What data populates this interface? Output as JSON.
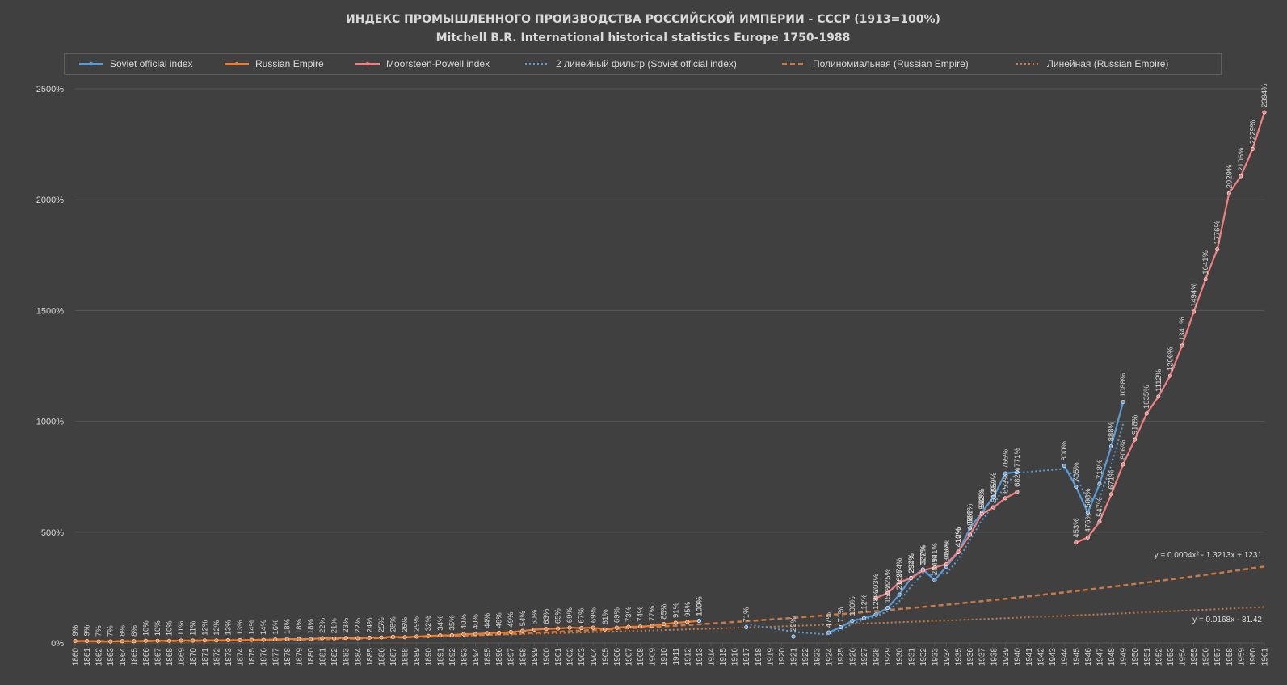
{
  "title_line1": "ИНДЕКС ПРОМЫШЛЕННОГО ПРОИЗВОДСТВА  РОССИЙСКОЙ ИМПЕРИИ  - СССР (1913=100%)",
  "title_line2": "Mitchell B.R. International historical statistics Europe 1750-1988",
  "colors": {
    "background": "#404040",
    "grid": "#595959",
    "text": "#d9d9d9",
    "soviet": "#5b9bd5",
    "russian": "#ed7d31",
    "mp": "#f08080",
    "trend": "#c97a45"
  },
  "chart_data": {
    "type": "line",
    "ylim": [
      0,
      2500
    ],
    "yticks": [
      0,
      500,
      1000,
      1500,
      2000,
      2500
    ],
    "ytick_labels": [
      "0%",
      "500%",
      "1000%",
      "1500%",
      "2000%",
      "2500%"
    ],
    "categories": [
      "1860",
      "1861",
      "1862",
      "1863",
      "1864",
      "1865",
      "1866",
      "1867",
      "1868",
      "1869",
      "1870",
      "1871",
      "1872",
      "1873",
      "1874",
      "1875",
      "1876",
      "1877",
      "1878",
      "1879",
      "1880",
      "1881",
      "1882",
      "1883",
      "1884",
      "1885",
      "1886",
      "1887",
      "1888",
      "1889",
      "1890",
      "1891",
      "1892",
      "1893",
      "1894",
      "1895",
      "1896",
      "1897",
      "1898",
      "1899",
      "1900",
      "1901",
      "1902",
      "1903",
      "1904",
      "1905",
      "1906",
      "1907",
      "1908",
      "1909",
      "1910",
      "1911",
      "1912",
      "1913",
      "1914",
      "1915",
      "1916",
      "1917",
      "1918",
      "1919",
      "1920",
      "1921",
      "1922",
      "1923",
      "1924",
      "1925",
      "1926",
      "1927",
      "1928",
      "1929",
      "1930",
      "1931",
      "1932",
      "1933",
      "1934",
      "1935",
      "1936",
      "1937",
      "1938",
      "1939",
      "1940",
      "1941",
      "1942",
      "1943",
      "1944",
      "1945",
      "1946",
      "1947",
      "1948",
      "1949",
      "1950",
      "1951",
      "1952",
      "1953",
      "1954",
      "1955",
      "1956",
      "1957",
      "1958",
      "1959",
      "1960",
      "1961"
    ],
    "legend": [
      "Soviet official index",
      "Russian Empire",
      "Moorsteen-Powell index",
      "2 линейный фильтр (Soviet official index)",
      "Полиномиальная (Russian Empire)",
      "Линейная (Russian Empire)"
    ],
    "legend_position": "top",
    "series": [
      {
        "name": "Russian Empire",
        "points": [
          [
            1860,
            9
          ],
          [
            1861,
            9
          ],
          [
            1862,
            7
          ],
          [
            1863,
            7
          ],
          [
            1864,
            8
          ],
          [
            1865,
            8
          ],
          [
            1866,
            10
          ],
          [
            1867,
            10
          ],
          [
            1868,
            10
          ],
          [
            1869,
            11
          ],
          [
            1870,
            11
          ],
          [
            1871,
            12
          ],
          [
            1872,
            12
          ],
          [
            1873,
            13
          ],
          [
            1874,
            13
          ],
          [
            1875,
            14
          ],
          [
            1876,
            14
          ],
          [
            1877,
            16
          ],
          [
            1878,
            18
          ],
          [
            1879,
            18
          ],
          [
            1880,
            18
          ],
          [
            1881,
            22
          ],
          [
            1882,
            21
          ],
          [
            1883,
            23
          ],
          [
            1884,
            22
          ],
          [
            1885,
            24
          ],
          [
            1886,
            25
          ],
          [
            1887,
            28
          ],
          [
            1888,
            26
          ],
          [
            1889,
            29
          ],
          [
            1890,
            32
          ],
          [
            1891,
            34
          ],
          [
            1892,
            35
          ],
          [
            1893,
            40
          ],
          [
            1894,
            40
          ],
          [
            1895,
            44
          ],
          [
            1896,
            46
          ],
          [
            1897,
            49
          ],
          [
            1898,
            54
          ],
          [
            1899,
            60
          ],
          [
            1900,
            63
          ],
          [
            1901,
            65
          ],
          [
            1902,
            69
          ],
          [
            1903,
            67
          ],
          [
            1904,
            69
          ],
          [
            1905,
            61
          ],
          [
            1906,
            69
          ],
          [
            1907,
            73
          ],
          [
            1908,
            74
          ],
          [
            1909,
            77
          ],
          [
            1910,
            85
          ],
          [
            1911,
            91
          ],
          [
            1912,
            95
          ],
          [
            1913,
            100
          ]
        ],
        "labels": [
          "9%",
          "9%",
          "7%",
          "7%",
          "8%",
          "8%",
          "10%",
          "10%",
          "10%",
          "11%",
          "11%",
          "12%",
          "12%",
          "13%",
          "13%",
          "14%",
          "14%",
          "16%",
          "18%",
          "18%",
          "18%",
          "22%",
          "21%",
          "23%",
          "22%",
          "24%",
          "25%",
          "28%",
          "26%",
          "29%",
          "32%",
          "34%",
          "35%",
          "40%",
          "40%",
          "44%",
          "46%",
          "49%",
          "54%",
          "60%",
          "63%",
          "65%",
          "69%",
          "67%",
          "69%",
          "61%",
          "69%",
          "73%",
          "74%",
          "77%",
          "85%",
          "91%",
          "95%",
          "100%"
        ]
      },
      {
        "name": "Soviet official index",
        "points": [
          [
            1913,
            100
          ],
          [
            1917,
            71
          ],
          [
            1921,
            29
          ],
          [
            1924,
            47
          ],
          [
            1925,
            71
          ],
          [
            1926,
            100
          ],
          [
            1927,
            112
          ],
          [
            1928,
            128
          ],
          [
            1929,
            158
          ],
          [
            1930,
            218
          ],
          [
            1931,
            294
          ],
          [
            1932,
            332
          ],
          [
            1933,
            284
          ],
          [
            1934,
            345
          ],
          [
            1935,
            410
          ],
          [
            1936,
            518
          ],
          [
            1937,
            588
          ],
          [
            1938,
            659
          ],
          [
            1939,
            765
          ],
          [
            1940,
            771
          ],
          [
            1944,
            800
          ],
          [
            1945,
            705
          ],
          [
            1946,
            588
          ],
          [
            1947,
            718
          ],
          [
            1948,
            888
          ],
          [
            1949,
            1088
          ]
        ],
        "labels": [
          "100%",
          "71%",
          "29%",
          "47%",
          "71%",
          "100%",
          "112%",
          "128%",
          "158%",
          "218%",
          "294%",
          "332%",
          "284%",
          "345%",
          "410%",
          "518%",
          "588%",
          "659%",
          "765%",
          "771%",
          "800%",
          "705%",
          "588%",
          "718%",
          "888%",
          "1088%"
        ],
        "breaks_after": [
          1913,
          1917,
          1921,
          1940
        ]
      },
      {
        "name": "Moorsteen-Powell index",
        "points": [
          [
            1928,
            203
          ],
          [
            1929,
            225
          ],
          [
            1930,
            274
          ],
          [
            1931,
            293
          ],
          [
            1932,
            327
          ],
          [
            1933,
            341
          ],
          [
            1934,
            356
          ],
          [
            1935,
            412
          ],
          [
            1936,
            488
          ],
          [
            1937,
            582
          ],
          [
            1938,
            612
          ],
          [
            1939,
            653
          ],
          [
            1940,
            682
          ],
          [
            1945,
            453
          ],
          [
            1946,
            476
          ],
          [
            1947,
            547
          ],
          [
            1948,
            671
          ],
          [
            1949,
            806
          ],
          [
            1950,
            918
          ],
          [
            1951,
            1035
          ],
          [
            1952,
            1112
          ],
          [
            1953,
            1206
          ],
          [
            1954,
            1341
          ],
          [
            1955,
            1494
          ],
          [
            1956,
            1641
          ],
          [
            1957,
            1776
          ],
          [
            1958,
            2029
          ],
          [
            1959,
            2106
          ],
          [
            1960,
            2229
          ],
          [
            1961,
            2394
          ]
        ],
        "labels": [
          "203%",
          "225%",
          "274%",
          "293%",
          "327%",
          "341%",
          "356%",
          "412%",
          "488%",
          "582%",
          "612%",
          "653%",
          "682%",
          "453%",
          "476%",
          "547%",
          "671%",
          "806%",
          "918%",
          "1035%",
          "1112%",
          "1206%",
          "1341%",
          "1494%",
          "1641%",
          "1776%",
          "2029%",
          "2106%",
          "2229%",
          "2394%"
        ],
        "breaks_after": [
          1940
        ]
      }
    ],
    "trendlines": [
      {
        "name": "Полиномиальная (Russian Empire)",
        "equation": "y = 0.0004x² - 1.3213x + 1231"
      },
      {
        "name": "Линейная (Russian Empire)",
        "equation": "y = 0.0168x - 31.42"
      }
    ]
  }
}
